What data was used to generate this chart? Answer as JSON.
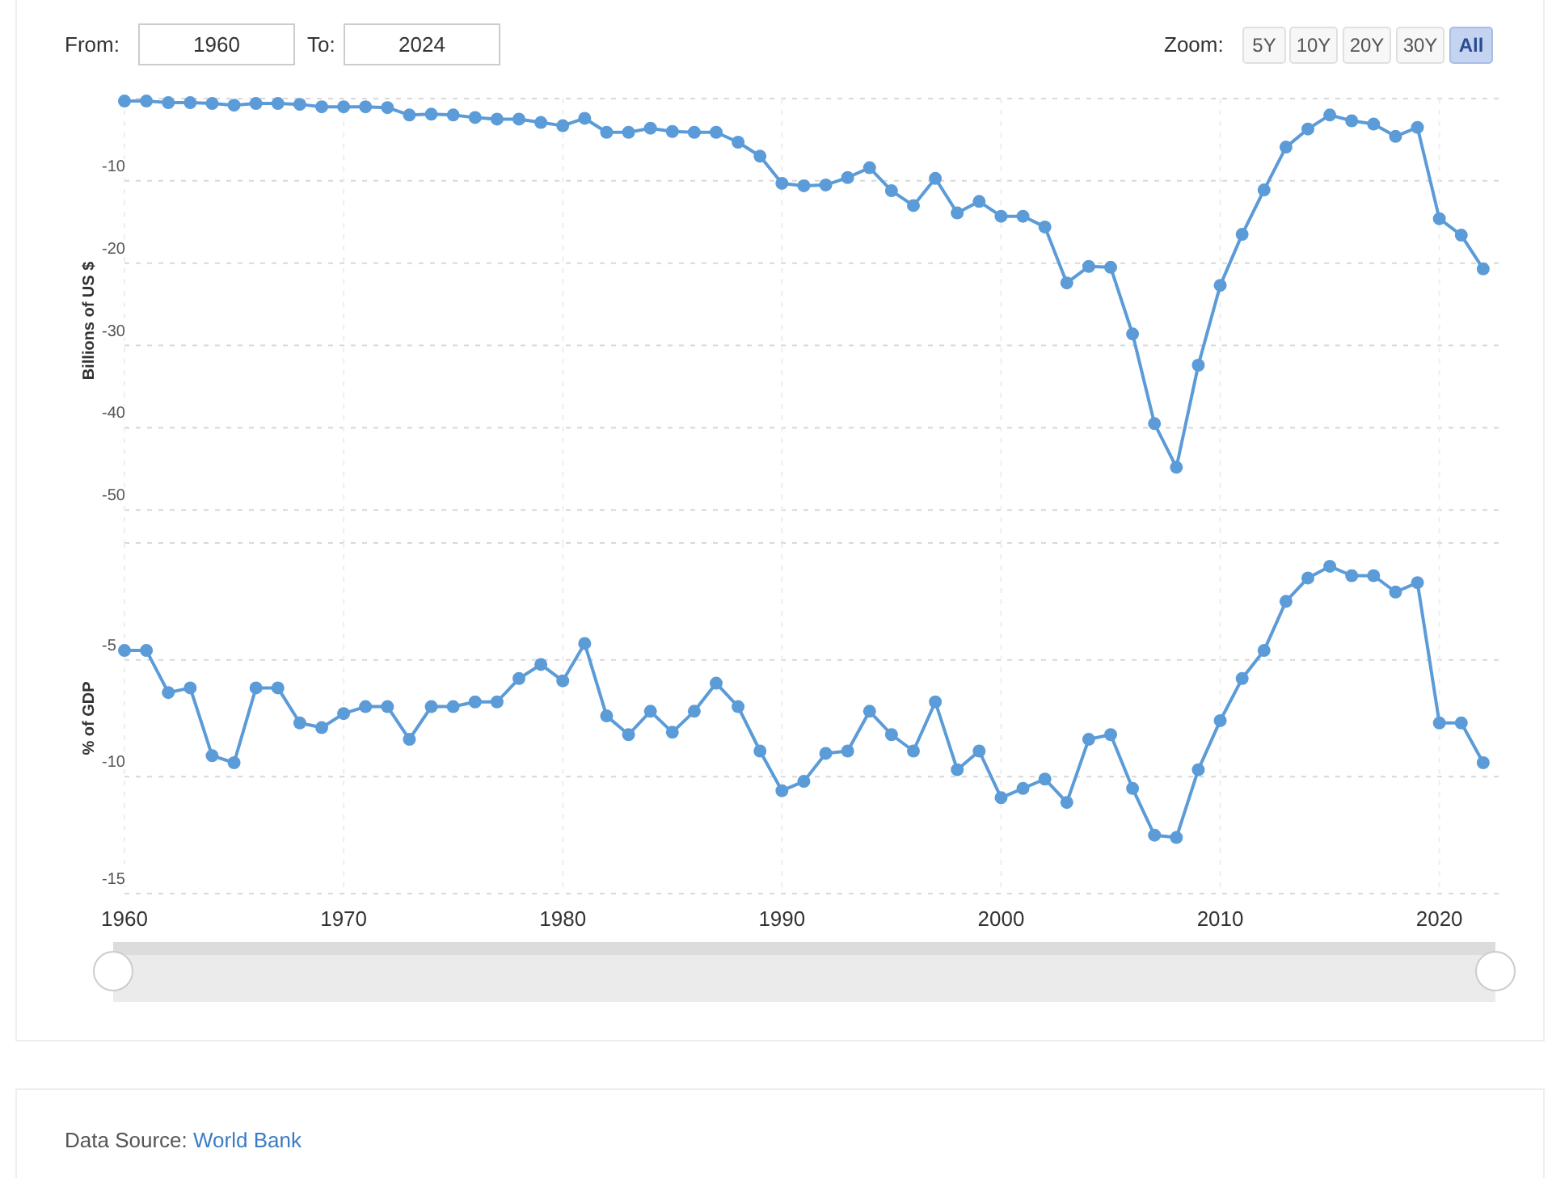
{
  "chart_data": [
    {
      "type": "line",
      "ylabel": "Billions of US $",
      "x": [
        1960,
        1961,
        1962,
        1963,
        1964,
        1965,
        1966,
        1967,
        1968,
        1969,
        1970,
        1971,
        1972,
        1973,
        1974,
        1975,
        1976,
        1977,
        1978,
        1979,
        1980,
        1981,
        1982,
        1983,
        1984,
        1985,
        1986,
        1987,
        1988,
        1989,
        1990,
        1991,
        1992,
        1993,
        1994,
        1995,
        1996,
        1997,
        1998,
        1999,
        2000,
        2001,
        2002,
        2003,
        2004,
        2005,
        2006,
        2007,
        2008,
        2009,
        2010,
        2011,
        2012,
        2013,
        2014,
        2015,
        2016,
        2017,
        2018,
        2019,
        2020,
        2021,
        2022
      ],
      "series": [
        {
          "color": "#5b9bd8",
          "values": [
            -0.3,
            -0.3,
            -0.5,
            -0.5,
            -0.6,
            -0.8,
            -0.6,
            -0.6,
            -0.7,
            -1.0,
            -1.0,
            -1.0,
            -1.1,
            -2.0,
            -1.9,
            -2.0,
            -2.3,
            -2.5,
            -2.5,
            -2.9,
            -3.3,
            -2.4,
            -4.1,
            -4.1,
            -3.6,
            -4.0,
            -4.1,
            -4.1,
            -5.3,
            -7.0,
            -10.3,
            -10.6,
            -10.5,
            -9.6,
            -8.4,
            -11.2,
            -13.0,
            -9.7,
            -13.9,
            -12.5,
            -14.3,
            -14.3,
            -15.6,
            -22.4,
            -20.4,
            -20.5,
            -28.6,
            -39.5,
            -44.8,
            -32.4,
            -22.7,
            -16.5,
            -11.1,
            -5.9,
            -3.7,
            -2.0,
            -2.7,
            -3.1,
            -4.6,
            -3.5,
            -14.6,
            -16.6,
            -20.7
          ]
        }
      ],
      "xlim": [
        1960,
        2023
      ],
      "xticks": [
        1960,
        1970,
        1980,
        1990,
        2000,
        2010,
        2020
      ],
      "ylim": [
        -54,
        0
      ],
      "yticks": [
        {
          "value": 0,
          "label": null
        },
        -10,
        -20,
        -30,
        -40,
        -50
      ],
      "grid": true,
      "marker": "circle",
      "tick_labels": "y",
      "annotations": [
        "From:",
        "1960",
        "To:",
        "2024",
        "Zoom:",
        "5Y",
        "10Y",
        "20Y",
        "30Y",
        "All"
      ]
    },
    {
      "type": "line",
      "ylabel": "% of GDP",
      "x": [
        1960,
        1961,
        1962,
        1963,
        1964,
        1965,
        1966,
        1967,
        1968,
        1969,
        1970,
        1971,
        1972,
        1973,
        1974,
        1975,
        1976,
        1977,
        1978,
        1979,
        1980,
        1981,
        1982,
        1983,
        1984,
        1985,
        1986,
        1987,
        1988,
        1989,
        1990,
        1991,
        1992,
        1993,
        1994,
        1995,
        1996,
        1997,
        1998,
        1999,
        2000,
        2001,
        2002,
        2003,
        2004,
        2005,
        2006,
        2007,
        2008,
        2009,
        2010,
        2011,
        2012,
        2013,
        2014,
        2015,
        2016,
        2017,
        2018,
        2019,
        2020,
        2021,
        2022
      ],
      "series": [
        {
          "color": "#5b9bd8",
          "values": [
            -4.6,
            -4.6,
            -6.4,
            -6.2,
            -9.1,
            -9.4,
            -6.2,
            -6.2,
            -7.7,
            -7.9,
            -7.3,
            -7.0,
            -7.0,
            -8.4,
            -7.0,
            -7.0,
            -6.8,
            -6.8,
            -5.8,
            -5.2,
            -5.9,
            -4.3,
            -7.4,
            -8.2,
            -7.2,
            -8.1,
            -7.2,
            -6.0,
            -7.0,
            -8.9,
            -10.6,
            -10.2,
            -9.0,
            -8.9,
            -7.2,
            -8.2,
            -8.9,
            -6.8,
            -9.7,
            -8.9,
            -10.9,
            -10.5,
            -10.1,
            -11.1,
            -8.4,
            -8.2,
            -10.5,
            -12.5,
            -12.6,
            -9.7,
            -7.6,
            -5.8,
            -4.6,
            -2.5,
            -1.5,
            -1.0,
            -1.4,
            -1.4,
            -2.1,
            -1.7,
            -7.7,
            -7.7,
            -9.4
          ]
        }
      ],
      "xlim": [
        1960,
        2023
      ],
      "xticks": [
        1960,
        1970,
        1980,
        1990,
        2000,
        2010,
        2020
      ],
      "ylim": [
        -15,
        0
      ],
      "yticks": [
        {
          "value": 0,
          "label": null
        },
        -5,
        -10,
        -15
      ],
      "grid": true,
      "marker": "circle",
      "annotations": [
        "Data Source: World Bank"
      ]
    }
  ]
}
